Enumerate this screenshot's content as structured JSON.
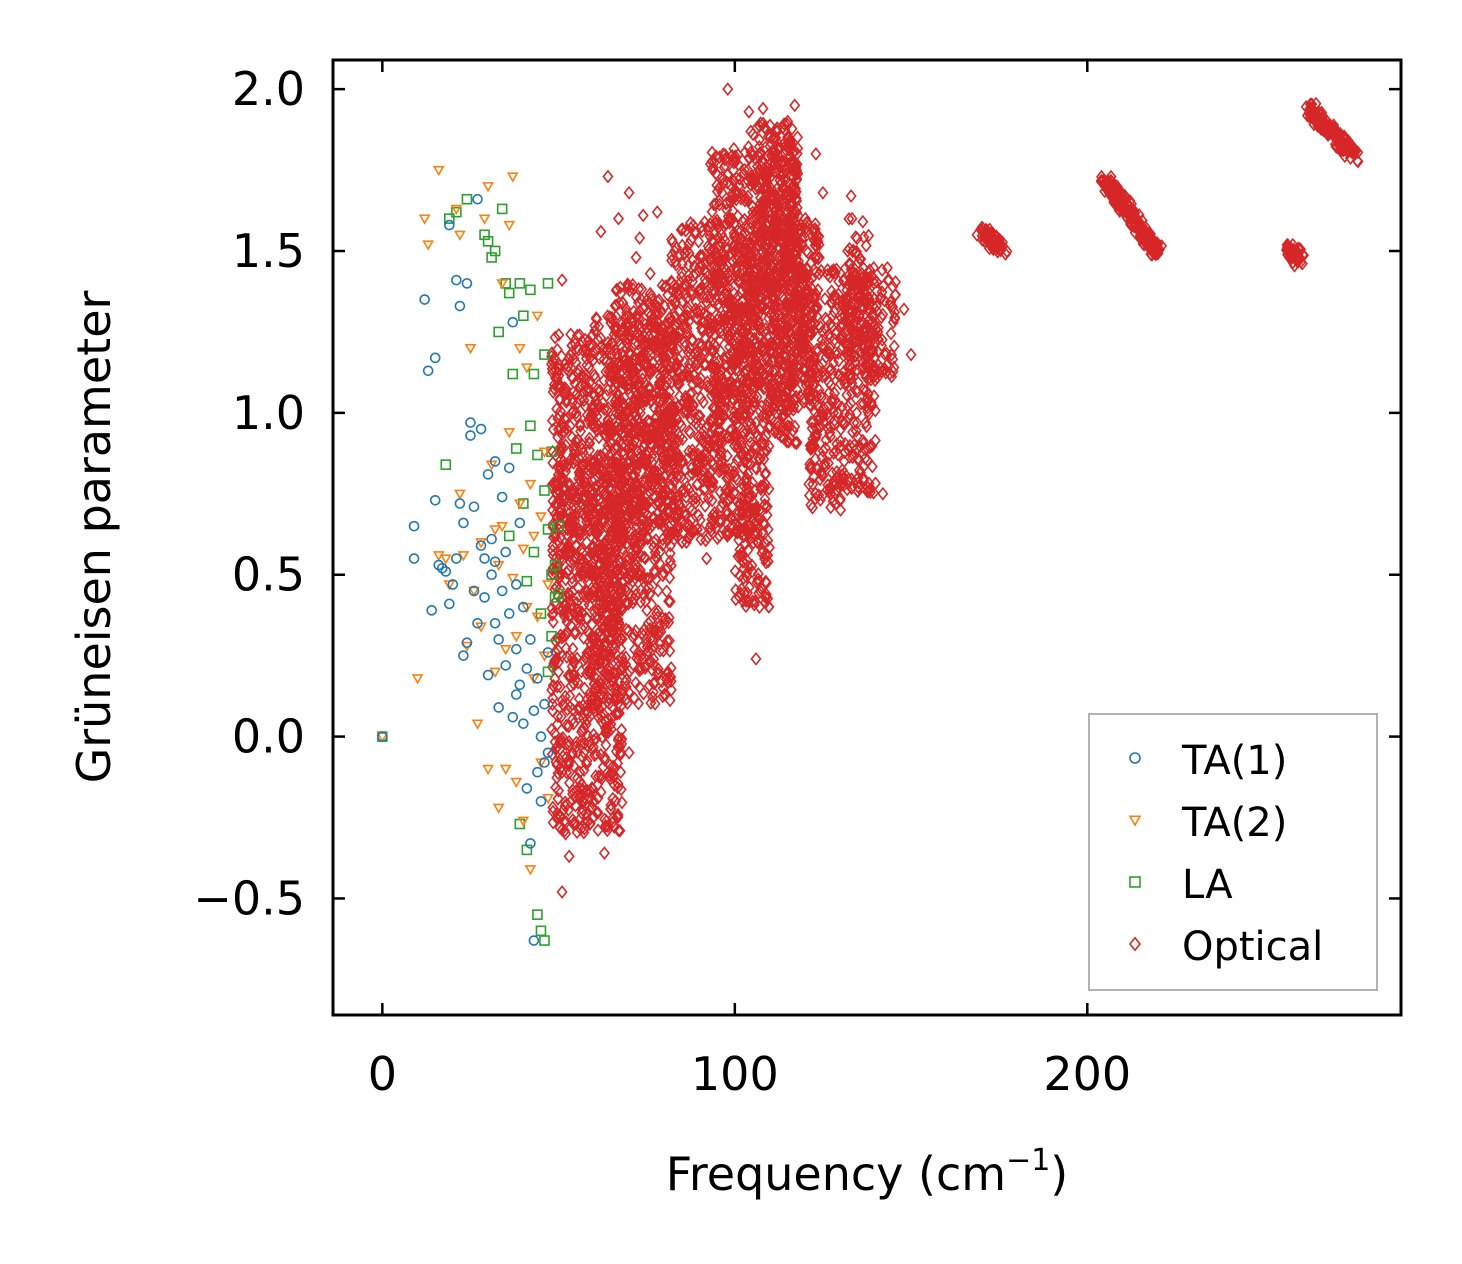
{
  "chart_data": {
    "type": "scatter",
    "title": "",
    "xlabel": "Frequency (cm",
    "xlabel_sup": "−1",
    "xlabel_close": ")",
    "ylabel": "Grüneisen parameter",
    "xlim": [
      -14,
      289
    ],
    "ylim": [
      -0.86,
      2.09
    ],
    "xticks": [
      0,
      100,
      200
    ],
    "xtick_labels": [
      "0",
      "100",
      "200"
    ],
    "yticks": [
      -0.5,
      0.0,
      0.5,
      1.0,
      1.5,
      2.0
    ],
    "ytick_labels": [
      "−0.5",
      "0.0",
      "0.5",
      "1.0",
      "1.5",
      "2.0"
    ],
    "grid": false,
    "legend_position": "bottom-right",
    "series": [
      {
        "name": "TA(1)",
        "color": "#1f77b4",
        "marker": "circle",
        "points": [
          [
            0,
            0.0
          ],
          [
            9,
            0.65
          ],
          [
            9,
            0.55
          ],
          [
            12,
            1.35
          ],
          [
            13,
            1.13
          ],
          [
            14,
            0.39
          ],
          [
            15,
            1.17
          ],
          [
            15,
            0.73
          ],
          [
            16,
            0.53
          ],
          [
            17,
            0.52
          ],
          [
            18,
            0.51
          ],
          [
            19,
            0.41
          ],
          [
            19,
            1.58
          ],
          [
            20,
            0.47
          ],
          [
            21,
            1.41
          ],
          [
            21,
            0.55
          ],
          [
            22,
            0.72
          ],
          [
            22,
            1.33
          ],
          [
            23,
            0.25
          ],
          [
            23,
            0.66
          ],
          [
            24,
            1.4
          ],
          [
            24,
            0.29
          ],
          [
            25,
            0.93
          ],
          [
            25,
            0.97
          ],
          [
            26,
            0.45
          ],
          [
            26,
            0.71
          ],
          [
            27,
            0.35
          ],
          [
            27,
            1.66
          ],
          [
            28,
            0.59
          ],
          [
            28,
            0.95
          ],
          [
            29,
            0.43
          ],
          [
            29,
            0.55
          ],
          [
            30,
            0.19
          ],
          [
            30,
            0.81
          ],
          [
            31,
            0.5
          ],
          [
            31,
            0.61
          ],
          [
            32,
            0.35
          ],
          [
            32,
            0.85
          ],
          [
            32,
            0.54
          ],
          [
            33,
            0.09
          ],
          [
            33,
            0.3
          ],
          [
            34,
            0.74
          ],
          [
            34,
            0.45
          ],
          [
            35,
            0.22
          ],
          [
            35,
            0.57
          ],
          [
            36,
            0.83
          ],
          [
            36,
            0.38
          ],
          [
            37,
            0.06
          ],
          [
            37,
            1.28
          ],
          [
            38,
            0.13
          ],
          [
            38,
            0.47
          ],
          [
            38,
            0.27
          ],
          [
            39,
            0.66
          ],
          [
            39,
            0.16
          ],
          [
            40,
            0.04
          ],
          [
            40,
            0.4
          ],
          [
            41,
            -0.16
          ],
          [
            41,
            0.21
          ],
          [
            42,
            -0.33
          ],
          [
            42,
            0.3
          ],
          [
            43,
            -0.63
          ],
          [
            43,
            0.08
          ],
          [
            44,
            -0.11
          ],
          [
            44,
            0.18
          ],
          [
            45,
            -0.2
          ],
          [
            45,
            0.0
          ],
          [
            46,
            -0.08
          ],
          [
            46,
            0.1
          ],
          [
            47,
            -0.05
          ],
          [
            47,
            0.26
          ]
        ]
      },
      {
        "name": "TA(2)",
        "color": "#ff7f0e",
        "marker": "triangle-down",
        "points": [
          [
            0,
            0.0
          ],
          [
            10,
            0.18
          ],
          [
            12,
            1.6
          ],
          [
            13,
            1.52
          ],
          [
            16,
            0.56
          ],
          [
            16,
            1.75
          ],
          [
            18,
            0.55
          ],
          [
            19,
            0.47
          ],
          [
            21,
            1.63
          ],
          [
            22,
            1.55
          ],
          [
            22,
            0.75
          ],
          [
            23,
            0.56
          ],
          [
            24,
            0.28
          ],
          [
            25,
            1.2
          ],
          [
            26,
            0.45
          ],
          [
            27,
            0.04
          ],
          [
            28,
            0.34
          ],
          [
            28,
            0.6
          ],
          [
            29,
            1.6
          ],
          [
            30,
            -0.1
          ],
          [
            30,
            1.7
          ],
          [
            31,
            0.84
          ],
          [
            32,
            0.64
          ],
          [
            32,
            0.2
          ],
          [
            33,
            -0.22
          ],
          [
            33,
            0.53
          ],
          [
            34,
            0.65
          ],
          [
            34,
            1.4
          ],
          [
            35,
            0.27
          ],
          [
            35,
            -0.1
          ],
          [
            36,
            1.58
          ],
          [
            36,
            0.94
          ],
          [
            37,
            1.73
          ],
          [
            37,
            0.49
          ],
          [
            38,
            0.31
          ],
          [
            38,
            -0.14
          ],
          [
            39,
            0.72
          ],
          [
            39,
            1.2
          ],
          [
            40,
            0.58
          ],
          [
            40,
            -0.26
          ],
          [
            41,
            0.4
          ],
          [
            41,
            1.14
          ],
          [
            42,
            -0.41
          ],
          [
            42,
            0.78
          ],
          [
            43,
            0.18
          ],
          [
            43,
            0.62
          ],
          [
            44,
            1.3
          ],
          [
            44,
            0.37
          ],
          [
            45,
            -0.08
          ],
          [
            45,
            0.68
          ],
          [
            46,
            0.25
          ],
          [
            46,
            0.88
          ],
          [
            47,
            0.47
          ],
          [
            47,
            -0.19
          ]
        ]
      },
      {
        "name": "LA",
        "color": "#2ca02c",
        "marker": "square",
        "points": [
          [
            0,
            0.0
          ],
          [
            18,
            0.84
          ],
          [
            19,
            1.6
          ],
          [
            21,
            1.62
          ],
          [
            24,
            1.66
          ],
          [
            29,
            1.55
          ],
          [
            30,
            1.53
          ],
          [
            31,
            1.48
          ],
          [
            32,
            1.5
          ],
          [
            33,
            1.25
          ],
          [
            34,
            1.63
          ],
          [
            35,
            1.4
          ],
          [
            36,
            1.37
          ],
          [
            36,
            0.62
          ],
          [
            37,
            1.12
          ],
          [
            38,
            0.89
          ],
          [
            39,
            1.4
          ],
          [
            39,
            -0.27
          ],
          [
            40,
            1.3
          ],
          [
            40,
            0.72
          ],
          [
            41,
            -0.35
          ],
          [
            41,
            0.48
          ],
          [
            42,
            1.38
          ],
          [
            42,
            0.96
          ],
          [
            43,
            1.12
          ],
          [
            43,
            0.57
          ],
          [
            44,
            -0.55
          ],
          [
            44,
            0.87
          ],
          [
            45,
            -0.6
          ],
          [
            45,
            0.38
          ],
          [
            46,
            -0.63
          ],
          [
            46,
            1.18
          ],
          [
            46,
            0.76
          ],
          [
            47,
            1.4
          ],
          [
            47,
            0.64
          ],
          [
            47,
            0.2
          ],
          [
            48,
            0.5
          ],
          [
            48,
            0.88
          ],
          [
            48,
            0.31
          ],
          [
            49,
            0.53
          ],
          [
            49,
            0.43
          ],
          [
            50,
            0.44
          ],
          [
            50,
            0.65
          ]
        ]
      },
      {
        "name": "Optical",
        "color": "#d62728",
        "marker": "diamond",
        "points": [
          [
            48,
            1.15
          ],
          [
            50,
            0.6
          ],
          [
            50,
            0.2
          ],
          [
            51,
            -0.48
          ],
          [
            51,
            1.41
          ],
          [
            52,
            0.9
          ],
          [
            52,
            -0.3
          ],
          [
            53,
            -0.37
          ],
          [
            53,
            0.42
          ],
          [
            55,
            1.0
          ],
          [
            56,
            1.24
          ],
          [
            58,
            0.6
          ],
          [
            60,
            0.72
          ],
          [
            60,
            -0.2
          ],
          [
            62,
            1.56
          ],
          [
            63,
            -0.36
          ],
          [
            64,
            1.73
          ],
          [
            65,
            0.3
          ],
          [
            67,
            1.6
          ],
          [
            68,
            0.43
          ],
          [
            70,
            1.68
          ],
          [
            70,
            -0.05
          ],
          [
            72,
            1.48
          ],
          [
            73,
            1.54
          ],
          [
            74,
            1.61
          ],
          [
            75,
            0.3
          ],
          [
            76,
            1.43
          ],
          [
            78,
            1.62
          ],
          [
            80,
            0.9
          ],
          [
            81,
            0.2
          ],
          [
            82,
            1.2
          ],
          [
            83,
            1.3
          ],
          [
            85,
            0.6
          ],
          [
            86,
            1.05
          ],
          [
            88,
            0.73
          ],
          [
            90,
            1.45
          ],
          [
            92,
            0.55
          ],
          [
            95,
            1.27
          ],
          [
            98,
            2.0
          ],
          [
            100,
            1.5
          ],
          [
            102,
            0.7
          ],
          [
            104,
            1.93
          ],
          [
            105,
            0.95
          ],
          [
            106,
            0.24
          ],
          [
            107,
            0.4
          ],
          [
            108,
            1.94
          ],
          [
            110,
            1.68
          ],
          [
            112,
            1.88
          ],
          [
            114,
            0.92
          ],
          [
            115,
            1.9
          ],
          [
            117,
            1.95
          ],
          [
            118,
            1.3
          ],
          [
            120,
            1.6
          ],
          [
            121,
            0.78
          ],
          [
            123,
            1.8
          ],
          [
            125,
            1.68
          ],
          [
            127,
            1.42
          ],
          [
            128,
            1.0
          ],
          [
            130,
            0.7
          ],
          [
            132,
            1.5
          ],
          [
            133,
            1.67
          ],
          [
            135,
            0.8
          ],
          [
            138,
            1.4
          ],
          [
            140,
            1.26
          ],
          [
            142,
            0.75
          ],
          [
            145,
            1.28
          ],
          [
            148,
            1.32
          ],
          [
            150,
            1.18
          ]
        ],
        "regions": [
          {
            "name": "main-lower",
            "x": [
              48,
              68
            ],
            "y": [
              -0.3,
              0.85
            ]
          },
          {
            "name": "main-left-upper",
            "x": [
              48,
              60
            ],
            "y": [
              0.5,
              1.25
            ]
          },
          {
            "name": "main-middle",
            "x": [
              60,
              82
            ],
            "y": [
              0.1,
              1.3
            ]
          },
          {
            "name": "main-middle-upper",
            "x": [
              66,
              84
            ],
            "y": [
              0.6,
              1.4
            ]
          },
          {
            "name": "main-right",
            "x": [
              82,
              104
            ],
            "y": [
              0.6,
              1.6
            ]
          },
          {
            "name": "main-top",
            "x": [
              93,
              118
            ],
            "y": [
              0.9,
              1.82
            ]
          },
          {
            "name": "main-top-upper",
            "x": [
              103,
              118
            ],
            "y": [
              1.3,
              1.9
            ]
          },
          {
            "name": "band-110",
            "x": [
              104,
              124
            ],
            "y": [
              1.0,
              1.6
            ]
          },
          {
            "name": "band-120",
            "x": [
              118,
              146
            ],
            "y": [
              1.1,
              1.45
            ]
          },
          {
            "name": "dip-108",
            "x": [
              100,
              110
            ],
            "y": [
              0.4,
              0.9
            ]
          },
          {
            "name": "dip-125",
            "x": [
              121,
              130
            ],
            "y": [
              0.7,
              1.1
            ]
          },
          {
            "name": "dip-133",
            "x": [
              130,
              140
            ],
            "y": [
              0.75,
              1.35
            ]
          },
          {
            "name": "spike-136",
            "x": [
              132,
              138
            ],
            "y": [
              1.3,
              1.6
            ]
          }
        ],
        "islands": [
          {
            "name": "island-173",
            "x1": 170,
            "y1": 1.56,
            "x2": 176,
            "y2": 1.5
          },
          {
            "name": "island-210",
            "x1": 205,
            "y1": 1.72,
            "x2": 220,
            "y2": 1.5
          },
          {
            "name": "island-260",
            "x1": 258,
            "y1": 1.51,
            "x2": 260,
            "y2": 1.47
          },
          {
            "name": "island-270",
            "x1": 263,
            "y1": 1.94,
            "x2": 276,
            "y2": 1.79
          }
        ]
      }
    ]
  }
}
